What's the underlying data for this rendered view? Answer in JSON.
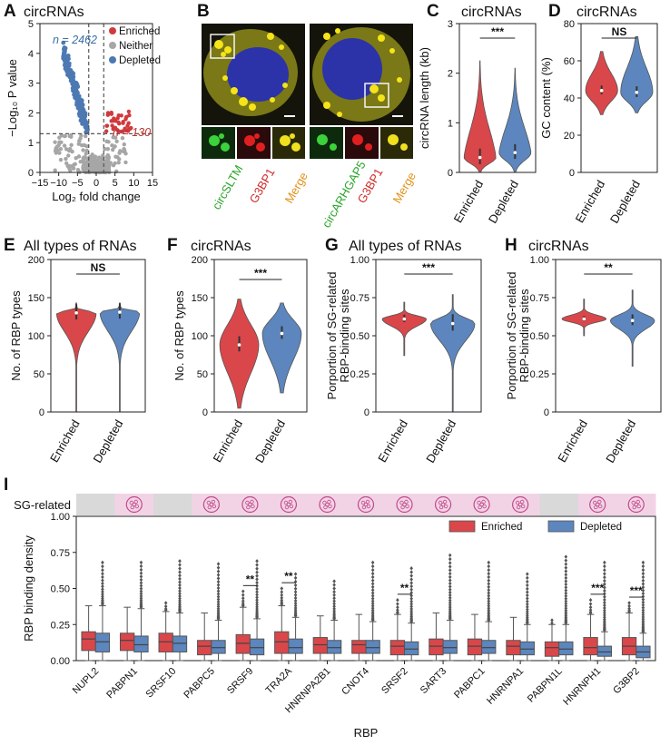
{
  "colors": {
    "enriched": "#d03a3d",
    "depleted": "#4d79b3",
    "neither": "#a6a6a6",
    "violin_enriched": "#d9474a",
    "violin_depleted": "#5c86bd",
    "gfp": "#2aa52a",
    "red": "#d02a2a",
    "merge": "#e0921b",
    "n_depleted": "#3b6ea5",
    "n_enriched": "#c03030",
    "sg_band": "#d9d9d9",
    "sg_band_pink": "#f2d3e6"
  },
  "panels": {
    "A": {
      "label": "A",
      "title": "circRNAs"
    },
    "B": {
      "label": "B"
    },
    "C": {
      "label": "C",
      "title": "circRNAs"
    },
    "D": {
      "label": "D",
      "title": "circRNAs"
    },
    "E": {
      "label": "E",
      "title": "All types of RNAs"
    },
    "F": {
      "label": "F",
      "title": "circRNAs"
    },
    "G": {
      "label": "G",
      "title": "All types of RNAs"
    },
    "H": {
      "label": "H",
      "title": "circRNAs"
    },
    "I": {
      "label": "I"
    }
  },
  "microscopy": {
    "left": {
      "gene": "circSLTM",
      "red": "G3BP1",
      "merge": "Merge"
    },
    "right": {
      "gene": "circARHGAP5",
      "red": "G3BP1",
      "merge": "Merge"
    }
  },
  "chart_data": [
    {
      "panel": "A",
      "type": "scatter",
      "title": "circRNAs",
      "xlabel": "Log₂ fold change",
      "ylabel": "−Log₁₀ P value",
      "xlim": [
        -15,
        15
      ],
      "ylim": [
        0,
        5
      ],
      "xticks": [
        "−15",
        "−10",
        "−5",
        "0",
        "5",
        "10",
        "15"
      ],
      "yticks": [
        "0",
        "1",
        "2",
        "3",
        "4",
        "5"
      ],
      "thresholds": {
        "x": [
          -2,
          2
        ],
        "y": 1.3
      },
      "legend": [
        "Enriched",
        "Neither",
        "Depleted"
      ],
      "annotations": [
        {
          "text": "n = 2462",
          "group": "Depleted"
        },
        {
          "text": "n = 130",
          "group": "Enriched"
        }
      ],
      "counts": {
        "Depleted": 2462,
        "Enriched": 130
      }
    },
    {
      "panel": "C",
      "type": "violin",
      "title": "circRNAs",
      "ylabel": "circRNA length (kb)",
      "categories": [
        "Enriched",
        "Depleted"
      ],
      "ylim": [
        0,
        3
      ],
      "yticks": [
        "0",
        "1",
        "2",
        "3"
      ],
      "median": [
        0.3,
        0.4
      ],
      "max": [
        2.25,
        2.1
      ],
      "significance": "***"
    },
    {
      "panel": "D",
      "type": "violin",
      "title": "circRNAs",
      "ylabel": "GC content (%)",
      "categories": [
        "Enriched",
        "Depleted"
      ],
      "ylim": [
        0,
        80
      ],
      "yticks": [
        "0",
        "20",
        "40",
        "60",
        "80"
      ],
      "median": [
        44,
        43
      ],
      "range": [
        [
          31,
          65
        ],
        [
          32,
          73
        ]
      ],
      "significance": "NS"
    },
    {
      "panel": "E",
      "type": "violin",
      "title": "All types of RNAs",
      "ylabel": "No. of RBP types",
      "categories": [
        "Enriched",
        "Depleted"
      ],
      "ylim": [
        0,
        200
      ],
      "yticks": [
        "0",
        "50",
        "100",
        "150",
        "200"
      ],
      "median": [
        130,
        131
      ],
      "range": [
        [
          0,
          143
        ],
        [
          0,
          143
        ]
      ],
      "significance": "NS"
    },
    {
      "panel": "F",
      "type": "violin",
      "title": "circRNAs",
      "ylabel": "No. of RBP types",
      "categories": [
        "Enriched",
        "Depleted"
      ],
      "ylim": [
        0,
        200
      ],
      "yticks": [
        "0",
        "50",
        "100",
        "150",
        "200"
      ],
      "median": [
        88,
        103
      ],
      "range": [
        [
          5,
          148
        ],
        [
          25,
          143
        ]
      ],
      "significance": "***"
    },
    {
      "panel": "G",
      "type": "violin",
      "title": "All types of RNAs",
      "ylabel": "Porportion of SG-related RBP-binding sites",
      "categories": [
        "Enriched",
        "Depleted"
      ],
      "ylim": [
        0,
        1
      ],
      "yticks": [
        "0",
        "0.25",
        "0.50",
        "0.75",
        "1.00"
      ],
      "median": [
        0.61,
        0.58
      ],
      "range": [
        [
          0.37,
          0.72
        ],
        [
          0,
          0.77
        ]
      ],
      "significance": "***"
    },
    {
      "panel": "H",
      "type": "violin",
      "title": "circRNAs",
      "ylabel": "Porportion of SG-related RBP-binding sites",
      "categories": [
        "Enriched",
        "Depleted"
      ],
      "ylim": [
        0,
        1
      ],
      "yticks": [
        "0",
        "0.25",
        "0.50",
        "0.75",
        "1.00"
      ],
      "median": [
        0.61,
        0.6
      ],
      "range": [
        [
          0.5,
          0.74
        ],
        [
          0.3,
          0.8
        ]
      ],
      "significance": "**"
    },
    {
      "panel": "I",
      "type": "box",
      "xlabel": "RBP",
      "ylabel": "RBP binding density",
      "ylim": [
        0,
        1
      ],
      "yticks": [
        "0.00",
        "0.25",
        "0.50",
        "0.75",
        "1.00"
      ],
      "legend": [
        "Enriched",
        "Depleted"
      ],
      "sg_label": "SG-related",
      "categories": [
        "NUPL2",
        "PABPN1",
        "SRSF10",
        "PABPC5",
        "SRSF9",
        "TRA2A",
        "HNRNPA2B1",
        "CNOT4",
        "SRSF2",
        "SART3",
        "PABPC1",
        "HNRNPA1",
        "PABPN1L",
        "HNRNPH1",
        "G3BP2"
      ],
      "sg_related": [
        false,
        true,
        false,
        true,
        true,
        true,
        true,
        true,
        true,
        true,
        true,
        true,
        false,
        true,
        true
      ],
      "significance": [
        "",
        "",
        "",
        "",
        "**",
        "**",
        "",
        "",
        "**",
        "",
        "",
        "",
        "",
        "***",
        "***"
      ],
      "series": [
        {
          "name": "Enriched",
          "q1": [
            0.07,
            0.07,
            0.06,
            0.04,
            0.05,
            0.05,
            0.05,
            0.05,
            0.04,
            0.04,
            0.04,
            0.04,
            0.03,
            0.04,
            0.04
          ],
          "median": [
            0.15,
            0.14,
            0.13,
            0.1,
            0.12,
            0.13,
            0.11,
            0.11,
            0.1,
            0.1,
            0.1,
            0.1,
            0.09,
            0.09,
            0.1
          ],
          "q3": [
            0.2,
            0.19,
            0.19,
            0.14,
            0.18,
            0.2,
            0.16,
            0.14,
            0.14,
            0.15,
            0.15,
            0.14,
            0.13,
            0.16,
            0.16
          ],
          "whisker": [
            0.38,
            0.37,
            0.34,
            0.33,
            0.37,
            0.38,
            0.31,
            0.32,
            0.32,
            0.33,
            0.32,
            0.3,
            0.25,
            0.32,
            0.33
          ],
          "outlier_max": [
            0.0,
            0.0,
            0.4,
            0.0,
            0.48,
            0.5,
            0.0,
            0.0,
            0.42,
            0.0,
            0.0,
            0.0,
            0.28,
            0.42,
            0.4
          ]
        },
        {
          "name": "Depleted",
          "q1": [
            0.06,
            0.06,
            0.06,
            0.05,
            0.04,
            0.05,
            0.05,
            0.05,
            0.04,
            0.05,
            0.05,
            0.04,
            0.04,
            0.03,
            0.02
          ],
          "median": [
            0.13,
            0.11,
            0.12,
            0.09,
            0.09,
            0.09,
            0.09,
            0.09,
            0.08,
            0.09,
            0.09,
            0.08,
            0.08,
            0.06,
            0.06
          ],
          "q3": [
            0.19,
            0.17,
            0.17,
            0.14,
            0.15,
            0.15,
            0.14,
            0.14,
            0.13,
            0.14,
            0.14,
            0.13,
            0.13,
            0.1,
            0.1
          ],
          "whisker": [
            0.38,
            0.36,
            0.33,
            0.28,
            0.29,
            0.3,
            0.28,
            0.27,
            0.26,
            0.28,
            0.27,
            0.25,
            0.25,
            0.2,
            0.19
          ],
          "outlier_max": [
            0.68,
            0.68,
            0.69,
            0.67,
            0.69,
            0.6,
            0.55,
            0.68,
            0.64,
            0.73,
            0.68,
            0.6,
            0.72,
            0.68,
            0.68
          ]
        }
      ]
    }
  ]
}
